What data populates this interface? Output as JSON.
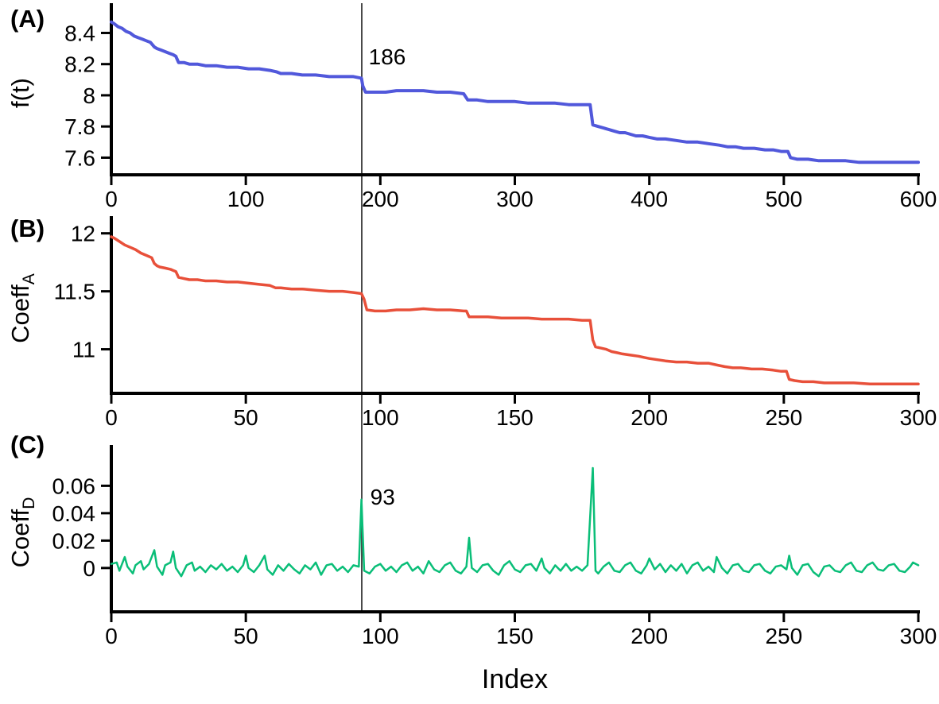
{
  "figure": {
    "xlabel": "Index",
    "background": "#ffffff",
    "axis_color": "#000000",
    "marker_line_color": "#4a4a4a"
  },
  "chart_data": [
    {
      "type": "line",
      "panel_tag": "(A)",
      "ylabel": "f(t)",
      "series_color": "#5158DB",
      "x_range": [
        0,
        600
      ],
      "y_range": [
        7.49,
        8.54
      ],
      "xticks": [
        "0",
        "100",
        "200",
        "300",
        "400",
        "500",
        "600"
      ],
      "yticks": [
        "7.6",
        "7.8",
        "8",
        "8.2",
        "8.4"
      ],
      "marker_x": 186,
      "marker_label": "186",
      "points": [
        [
          0,
          8.47
        ],
        [
          2,
          8.46
        ],
        [
          5,
          8.44
        ],
        [
          8,
          8.43
        ],
        [
          11,
          8.41
        ],
        [
          14,
          8.4
        ],
        [
          17,
          8.38
        ],
        [
          20,
          8.37
        ],
        [
          23,
          8.36
        ],
        [
          26,
          8.35
        ],
        [
          29,
          8.34
        ],
        [
          32,
          8.31
        ],
        [
          34,
          8.3
        ],
        [
          37,
          8.29
        ],
        [
          40,
          8.28
        ],
        [
          43,
          8.27
        ],
        [
          46,
          8.26
        ],
        [
          48,
          8.25
        ],
        [
          50,
          8.21
        ],
        [
          54,
          8.21
        ],
        [
          58,
          8.2
        ],
        [
          64,
          8.2
        ],
        [
          70,
          8.19
        ],
        [
          78,
          8.19
        ],
        [
          86,
          8.18
        ],
        [
          94,
          8.18
        ],
        [
          102,
          8.17
        ],
        [
          110,
          8.17
        ],
        [
          118,
          8.16
        ],
        [
          123,
          8.15
        ],
        [
          126,
          8.14
        ],
        [
          134,
          8.14
        ],
        [
          142,
          8.13
        ],
        [
          152,
          8.13
        ],
        [
          162,
          8.12
        ],
        [
          172,
          8.12
        ],
        [
          180,
          8.12
        ],
        [
          186,
          8.11
        ],
        [
          187,
          8.06
        ],
        [
          189,
          8.02
        ],
        [
          196,
          8.02
        ],
        [
          204,
          8.02
        ],
        [
          212,
          8.03
        ],
        [
          222,
          8.03
        ],
        [
          232,
          8.03
        ],
        [
          242,
          8.02
        ],
        [
          252,
          8.02
        ],
        [
          262,
          8.01
        ],
        [
          265,
          7.97
        ],
        [
          272,
          7.97
        ],
        [
          280,
          7.96
        ],
        [
          290,
          7.96
        ],
        [
          300,
          7.96
        ],
        [
          310,
          7.95
        ],
        [
          320,
          7.95
        ],
        [
          330,
          7.95
        ],
        [
          340,
          7.94
        ],
        [
          350,
          7.94
        ],
        [
          356,
          7.94
        ],
        [
          358,
          7.81
        ],
        [
          362,
          7.8
        ],
        [
          366,
          7.79
        ],
        [
          370,
          7.78
        ],
        [
          374,
          7.77
        ],
        [
          378,
          7.76
        ],
        [
          382,
          7.76
        ],
        [
          386,
          7.75
        ],
        [
          390,
          7.74
        ],
        [
          395,
          7.74
        ],
        [
          400,
          7.73
        ],
        [
          406,
          7.72
        ],
        [
          412,
          7.72
        ],
        [
          420,
          7.71
        ],
        [
          428,
          7.7
        ],
        [
          436,
          7.7
        ],
        [
          444,
          7.69
        ],
        [
          452,
          7.68
        ],
        [
          458,
          7.67
        ],
        [
          464,
          7.67
        ],
        [
          470,
          7.66
        ],
        [
          478,
          7.66
        ],
        [
          486,
          7.65
        ],
        [
          492,
          7.65
        ],
        [
          498,
          7.64
        ],
        [
          503,
          7.64
        ],
        [
          505,
          7.6
        ],
        [
          510,
          7.59
        ],
        [
          518,
          7.59
        ],
        [
          526,
          7.58
        ],
        [
          536,
          7.58
        ],
        [
          546,
          7.58
        ],
        [
          556,
          7.57
        ],
        [
          570,
          7.57
        ],
        [
          585,
          7.57
        ],
        [
          600,
          7.57
        ]
      ]
    },
    {
      "type": "line",
      "panel_tag": "(B)",
      "ylabel": "Coeff",
      "ylabel_sub": "A",
      "series_color": "#E8503A",
      "x_range": [
        0,
        300
      ],
      "y_range": [
        10.62,
        12.08
      ],
      "xticks": [
        "0",
        "50",
        "100",
        "150",
        "200",
        "250",
        "300"
      ],
      "yticks": [
        "11",
        "11.5",
        "12"
      ],
      "marker_x": 93,
      "points": [
        [
          0,
          11.97
        ],
        [
          1,
          11.96
        ],
        [
          3,
          11.93
        ],
        [
          5,
          11.9
        ],
        [
          7,
          11.88
        ],
        [
          9,
          11.86
        ],
        [
          11,
          11.83
        ],
        [
          13,
          11.81
        ],
        [
          15,
          11.79
        ],
        [
          16,
          11.74
        ],
        [
          17,
          11.72
        ],
        [
          18,
          11.71
        ],
        [
          20,
          11.7
        ],
        [
          22,
          11.69
        ],
        [
          23,
          11.68
        ],
        [
          24,
          11.67
        ],
        [
          25,
          11.62
        ],
        [
          27,
          11.61
        ],
        [
          29,
          11.6
        ],
        [
          32,
          11.6
        ],
        [
          35,
          11.59
        ],
        [
          39,
          11.59
        ],
        [
          43,
          11.58
        ],
        [
          47,
          11.58
        ],
        [
          51,
          11.57
        ],
        [
          55,
          11.56
        ],
        [
          59,
          11.55
        ],
        [
          61,
          11.53
        ],
        [
          63,
          11.53
        ],
        [
          67,
          11.52
        ],
        [
          71,
          11.52
        ],
        [
          76,
          11.51
        ],
        [
          81,
          11.5
        ],
        [
          86,
          11.5
        ],
        [
          90,
          11.49
        ],
        [
          93,
          11.48
        ],
        [
          94,
          11.43
        ],
        [
          95,
          11.34
        ],
        [
          98,
          11.33
        ],
        [
          102,
          11.33
        ],
        [
          106,
          11.34
        ],
        [
          111,
          11.34
        ],
        [
          116,
          11.35
        ],
        [
          121,
          11.34
        ],
        [
          126,
          11.34
        ],
        [
          131,
          11.33
        ],
        [
          132,
          11.33
        ],
        [
          133,
          11.28
        ],
        [
          136,
          11.28
        ],
        [
          140,
          11.28
        ],
        [
          145,
          11.27
        ],
        [
          150,
          11.27
        ],
        [
          155,
          11.27
        ],
        [
          160,
          11.26
        ],
        [
          165,
          11.26
        ],
        [
          170,
          11.26
        ],
        [
          175,
          11.25
        ],
        [
          178,
          11.25
        ],
        [
          179,
          11.08
        ],
        [
          180,
          11.02
        ],
        [
          182,
          11.01
        ],
        [
          184,
          11.0
        ],
        [
          186,
          10.98
        ],
        [
          188,
          10.97
        ],
        [
          190,
          10.96
        ],
        [
          193,
          10.95
        ],
        [
          196,
          10.94
        ],
        [
          198,
          10.93
        ],
        [
          200,
          10.92
        ],
        [
          203,
          10.91
        ],
        [
          206,
          10.9
        ],
        [
          210,
          10.89
        ],
        [
          214,
          10.89
        ],
        [
          218,
          10.88
        ],
        [
          222,
          10.88
        ],
        [
          226,
          10.86
        ],
        [
          228,
          10.85
        ],
        [
          231,
          10.84
        ],
        [
          234,
          10.84
        ],
        [
          238,
          10.83
        ],
        [
          242,
          10.83
        ],
        [
          246,
          10.82
        ],
        [
          249,
          10.81
        ],
        [
          251,
          10.81
        ],
        [
          252,
          10.74
        ],
        [
          254,
          10.73
        ],
        [
          257,
          10.72
        ],
        [
          261,
          10.72
        ],
        [
          265,
          10.71
        ],
        [
          270,
          10.71
        ],
        [
          276,
          10.71
        ],
        [
          282,
          10.7
        ],
        [
          288,
          10.7
        ],
        [
          294,
          10.7
        ],
        [
          300,
          10.7
        ]
      ]
    },
    {
      "type": "line",
      "panel_tag": "(C)",
      "ylabel": "Coeff",
      "ylabel_sub": "D",
      "series_color": "#0ABE78",
      "x_range": [
        0,
        300
      ],
      "y_range": [
        -0.032,
        0.084
      ],
      "xticks": [
        "0",
        "50",
        "100",
        "150",
        "200",
        "250",
        "300"
      ],
      "yticks": [
        "0",
        "0.02",
        "0.04",
        "0.06"
      ],
      "marker_x": 93,
      "marker_label": "93",
      "points": [
        [
          0,
          0.003
        ],
        [
          2,
          0.004
        ],
        [
          3,
          -0.002
        ],
        [
          5,
          0.008
        ],
        [
          6,
          0.001
        ],
        [
          8,
          -0.004
        ],
        [
          9,
          0.002
        ],
        [
          11,
          0.005
        ],
        [
          12,
          -0.001
        ],
        [
          14,
          0.003
        ],
        [
          16,
          0.013
        ],
        [
          17,
          0.001
        ],
        [
          19,
          -0.005
        ],
        [
          20,
          0.002
        ],
        [
          22,
          0.004
        ],
        [
          23,
          0.012
        ],
        [
          24,
          0.0
        ],
        [
          26,
          -0.006
        ],
        [
          28,
          0.002
        ],
        [
          30,
          0.004
        ],
        [
          31,
          -0.002
        ],
        [
          33,
          0.001
        ],
        [
          35,
          -0.003
        ],
        [
          37,
          0.002
        ],
        [
          39,
          -0.001
        ],
        [
          41,
          0.003
        ],
        [
          43,
          -0.002
        ],
        [
          45,
          0.001
        ],
        [
          47,
          -0.003
        ],
        [
          49,
          0.002
        ],
        [
          50,
          0.009
        ],
        [
          51,
          0.0
        ],
        [
          53,
          -0.003
        ],
        [
          55,
          0.002
        ],
        [
          57,
          0.009
        ],
        [
          58,
          -0.001
        ],
        [
          60,
          -0.005
        ],
        [
          62,
          0.002
        ],
        [
          64,
          -0.002
        ],
        [
          66,
          0.003
        ],
        [
          68,
          -0.001
        ],
        [
          70,
          -0.004
        ],
        [
          72,
          0.002
        ],
        [
          74,
          -0.001
        ],
        [
          76,
          0.004
        ],
        [
          78,
          -0.005
        ],
        [
          80,
          0.002
        ],
        [
          82,
          0.003
        ],
        [
          84,
          -0.002
        ],
        [
          86,
          0.001
        ],
        [
          88,
          -0.003
        ],
        [
          90,
          0.002
        ],
        [
          92,
          0.001
        ],
        [
          93,
          0.05
        ],
        [
          94,
          -0.002
        ],
        [
          96,
          -0.004
        ],
        [
          98,
          0.001
        ],
        [
          100,
          0.003
        ],
        [
          102,
          -0.002
        ],
        [
          104,
          0.001
        ],
        [
          106,
          -0.003
        ],
        [
          108,
          0.002
        ],
        [
          110,
          0.004
        ],
        [
          112,
          -0.002
        ],
        [
          114,
          0.001
        ],
        [
          116,
          -0.004
        ],
        [
          118,
          0.005
        ],
        [
          120,
          -0.001
        ],
        [
          122,
          -0.003
        ],
        [
          124,
          0.002
        ],
        [
          126,
          0.004
        ],
        [
          128,
          -0.002
        ],
        [
          130,
          -0.004
        ],
        [
          132,
          0.001
        ],
        [
          133,
          0.022
        ],
        [
          134,
          0.0
        ],
        [
          136,
          -0.003
        ],
        [
          138,
          0.002
        ],
        [
          140,
          0.003
        ],
        [
          142,
          -0.002
        ],
        [
          144,
          -0.005
        ],
        [
          146,
          0.002
        ],
        [
          148,
          0.005
        ],
        [
          150,
          -0.001
        ],
        [
          152,
          -0.003
        ],
        [
          154,
          0.002
        ],
        [
          156,
          0.003
        ],
        [
          158,
          -0.002
        ],
        [
          160,
          0.007
        ],
        [
          161,
          0.0
        ],
        [
          163,
          -0.004
        ],
        [
          165,
          0.002
        ],
        [
          167,
          -0.002
        ],
        [
          169,
          0.003
        ],
        [
          171,
          -0.002
        ],
        [
          173,
          0.001
        ],
        [
          175,
          -0.002
        ],
        [
          177,
          0.002
        ],
        [
          179,
          0.073
        ],
        [
          180,
          -0.002
        ],
        [
          181,
          -0.004
        ],
        [
          183,
          0.001
        ],
        [
          185,
          0.004
        ],
        [
          187,
          -0.002
        ],
        [
          189,
          -0.003
        ],
        [
          191,
          0.002
        ],
        [
          193,
          0.004
        ],
        [
          195,
          -0.002
        ],
        [
          197,
          -0.004
        ],
        [
          199,
          0.002
        ],
        [
          200,
          0.007
        ],
        [
          202,
          -0.001
        ],
        [
          204,
          0.003
        ],
        [
          206,
          -0.003
        ],
        [
          208,
          0.002
        ],
        [
          210,
          -0.002
        ],
        [
          212,
          0.003
        ],
        [
          214,
          -0.004
        ],
        [
          216,
          0.002
        ],
        [
          218,
          0.004
        ],
        [
          220,
          -0.002
        ],
        [
          222,
          0.001
        ],
        [
          224,
          -0.003
        ],
        [
          225,
          0.008
        ],
        [
          227,
          0.0
        ],
        [
          229,
          -0.004
        ],
        [
          231,
          0.002
        ],
        [
          233,
          0.003
        ],
        [
          235,
          -0.002
        ],
        [
          237,
          -0.003
        ],
        [
          239,
          0.002
        ],
        [
          241,
          0.003
        ],
        [
          243,
          -0.002
        ],
        [
          245,
          -0.004
        ],
        [
          247,
          0.001
        ],
        [
          249,
          0.002
        ],
        [
          251,
          -0.001
        ],
        [
          252,
          0.009
        ],
        [
          253,
          0.0
        ],
        [
          255,
          -0.005
        ],
        [
          257,
          0.002
        ],
        [
          259,
          0.003
        ],
        [
          261,
          -0.003
        ],
        [
          263,
          -0.006
        ],
        [
          265,
          0.001
        ],
        [
          267,
          0.002
        ],
        [
          269,
          -0.002
        ],
        [
          271,
          -0.003
        ],
        [
          273,
          0.002
        ],
        [
          275,
          0.004
        ],
        [
          277,
          -0.002
        ],
        [
          279,
          -0.003
        ],
        [
          281,
          0.002
        ],
        [
          283,
          0.004
        ],
        [
          285,
          -0.001
        ],
        [
          287,
          -0.002
        ],
        [
          289,
          0.002
        ],
        [
          291,
          0.003
        ],
        [
          293,
          -0.002
        ],
        [
          295,
          -0.003
        ],
        [
          297,
          0.001
        ],
        [
          298,
          0.004
        ],
        [
          300,
          0.002
        ]
      ]
    }
  ]
}
